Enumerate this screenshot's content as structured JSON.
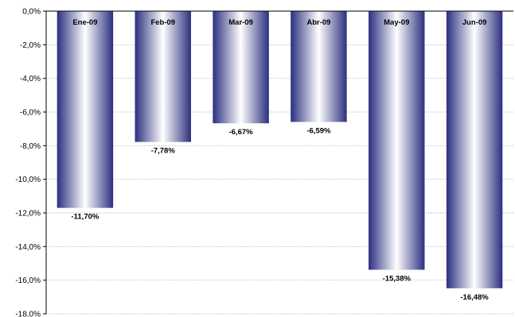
{
  "chart_data": {
    "type": "bar",
    "title": "",
    "xlabel": "",
    "ylabel": "",
    "categories": [
      "Ene-09",
      "Feb-09",
      "Mar-09",
      "Abr-09",
      "May-09",
      "Jun-09"
    ],
    "values": [
      -11.7,
      -7.78,
      -6.67,
      -6.59,
      -15.38,
      -16.48
    ],
    "data_labels": [
      "-11,70%",
      "-7,78%",
      "-6,67%",
      "-6,59%",
      "-15,38%",
      "-16,48%"
    ],
    "ylim": [
      -18,
      0
    ],
    "yticks": [
      0,
      -2,
      -4,
      -6,
      -8,
      -10,
      -12,
      -14,
      -16,
      -18
    ],
    "ytick_labels": [
      "0,0%",
      "-2,0%",
      "-4,0%",
      "-6,0%",
      "-8,0%",
      "-10,0%",
      "-12,0%",
      "-14,0%",
      "-16,0%",
      "-18,0%"
    ],
    "grid": true,
    "legend": "none",
    "category_label_position": "inside-top",
    "colors": {
      "bar_edge": "#2b2f7f",
      "bar_center": "#ffffff",
      "gridline": "#a8a8a8"
    }
  }
}
